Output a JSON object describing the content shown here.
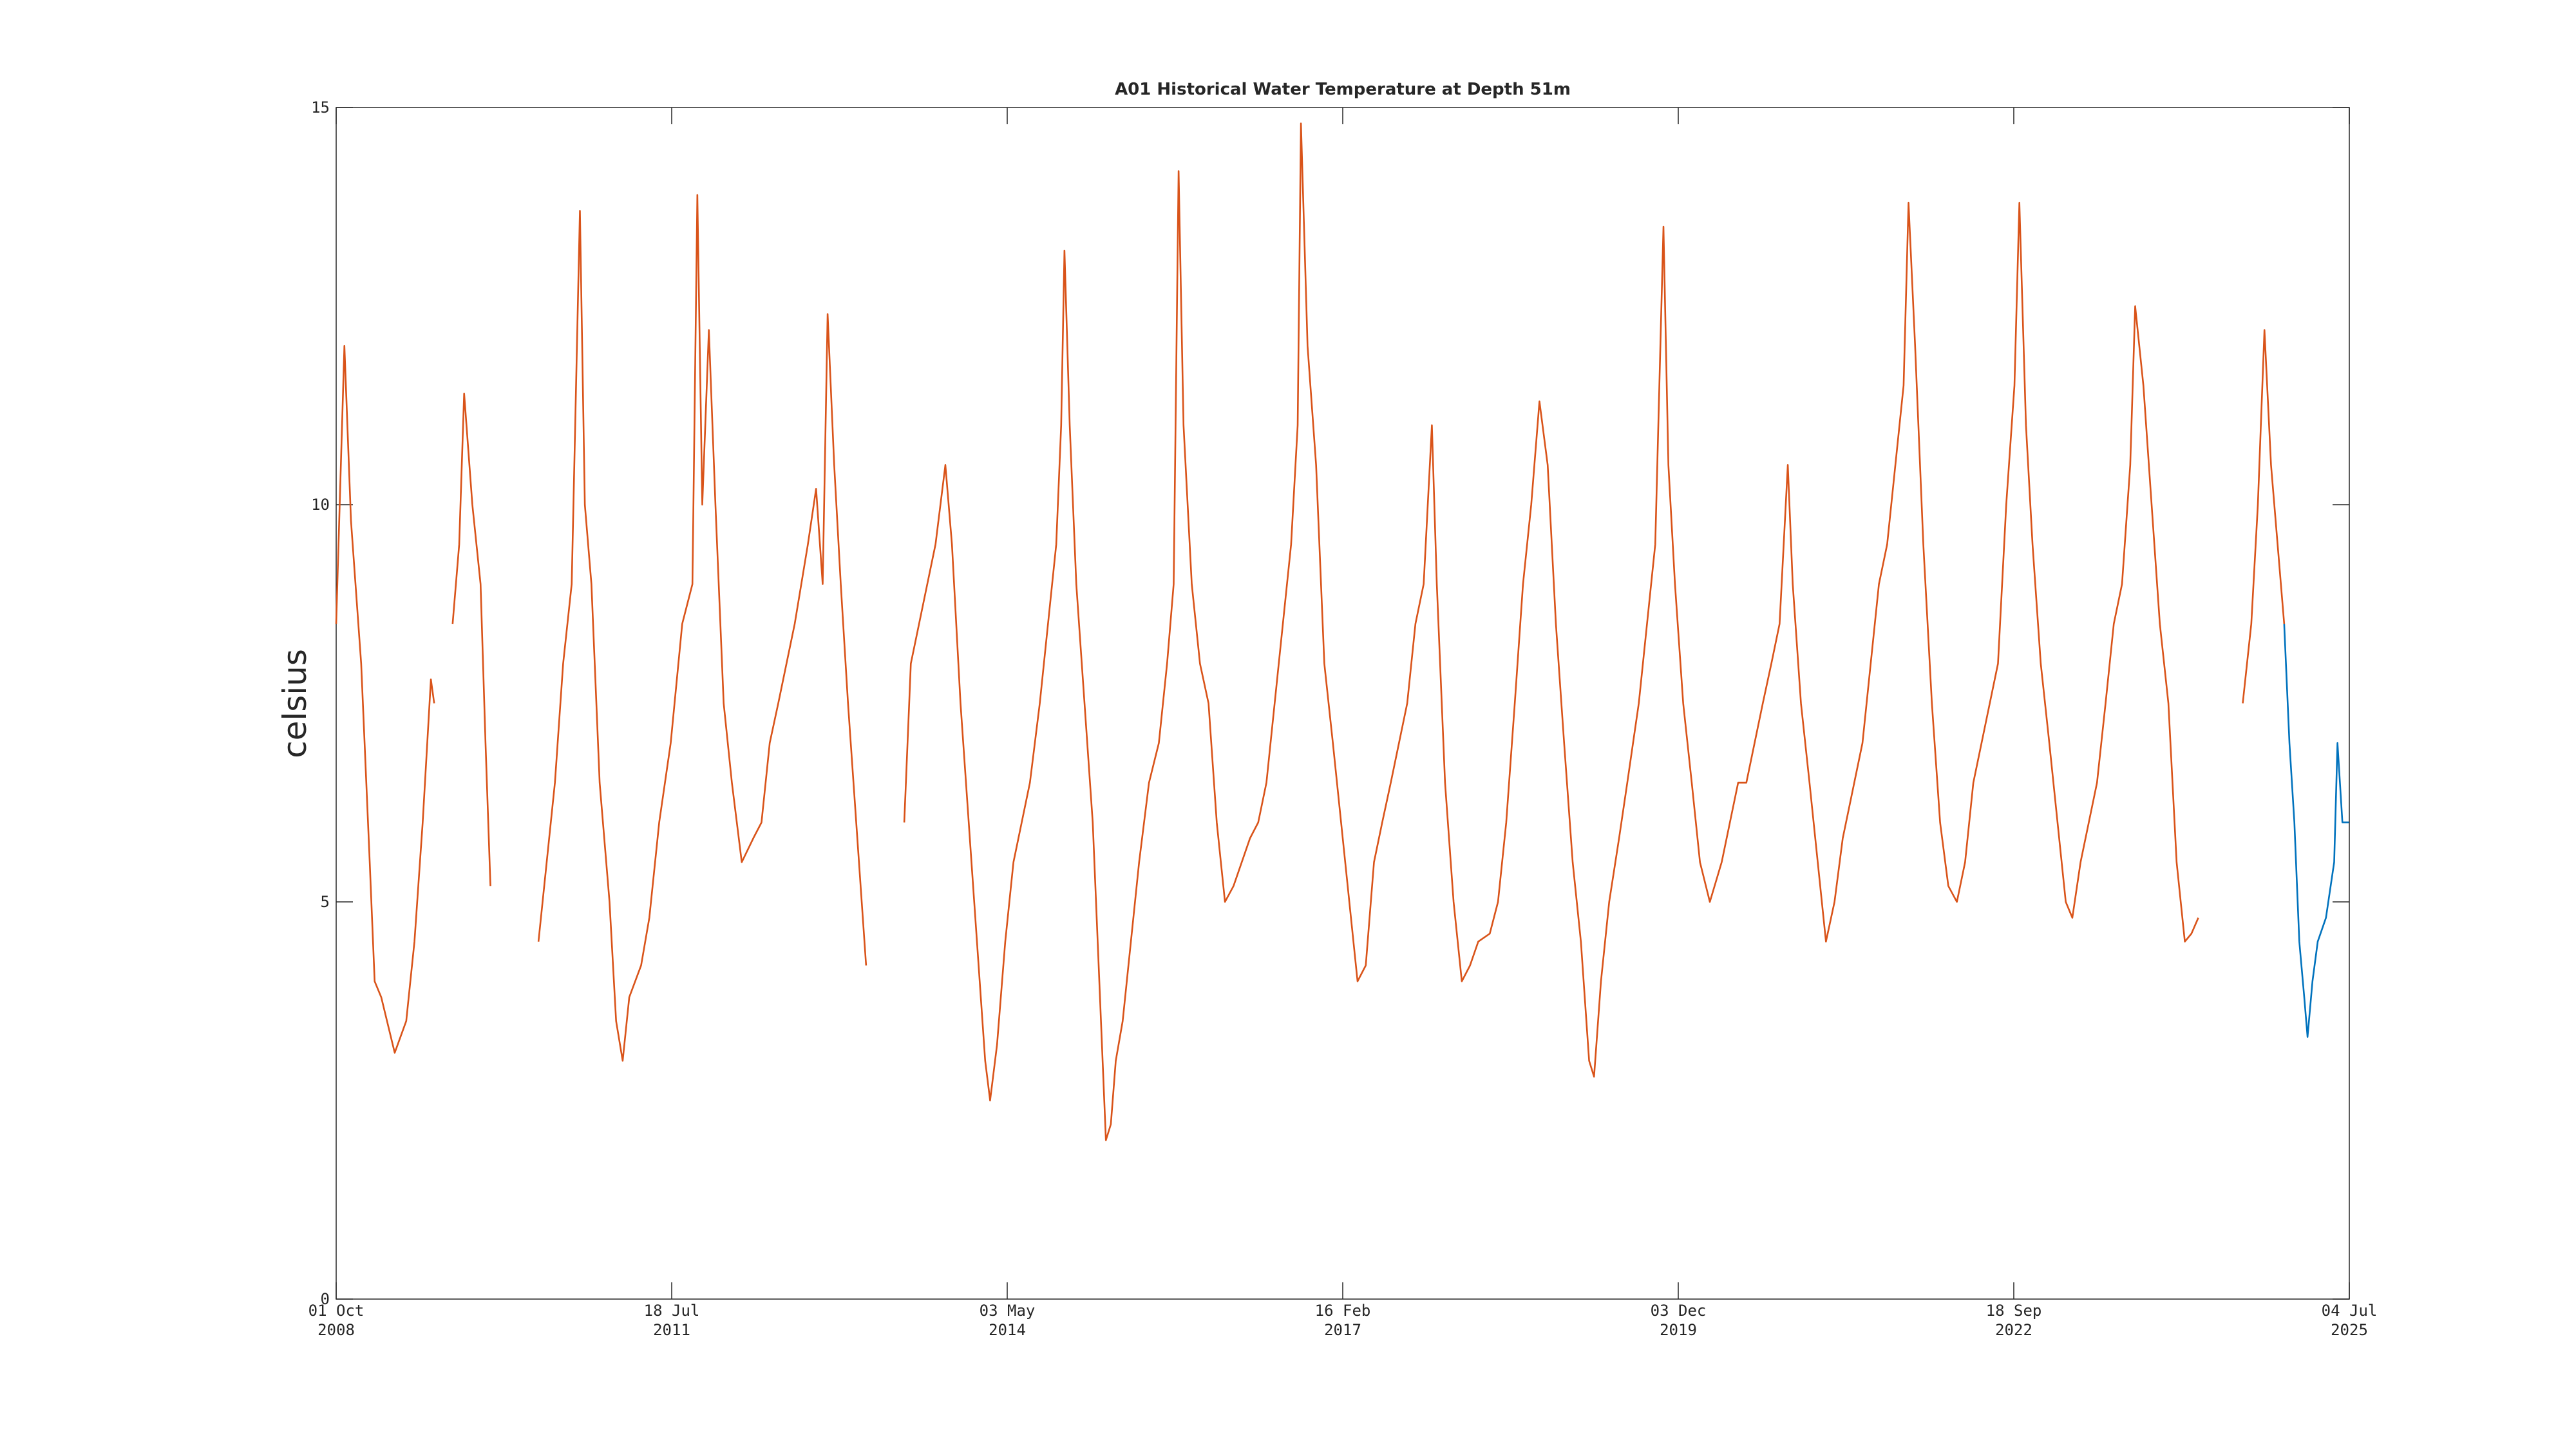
{
  "chart_data": {
    "type": "line",
    "title": "A01 Historical Water Temperature at Depth 51m",
    "y_label": "celsius",
    "xlim": [
      "2008-10-01",
      "2025-07-04"
    ],
    "xticks": [
      {
        "value": "2008-10-01",
        "label": "01 Oct\n2008"
      },
      {
        "value": "2011-07-18",
        "label": "18 Jul\n2011"
      },
      {
        "value": "2014-05-03",
        "label": "03 May\n2014"
      },
      {
        "value": "2017-02-16",
        "label": "16 Feb\n2017"
      },
      {
        "value": "2019-12-03",
        "label": "03 Dec\n2019"
      },
      {
        "value": "2022-09-18",
        "label": "18 Sep\n2022"
      },
      {
        "value": "2025-07-04",
        "label": "04 Jul\n2025"
      }
    ],
    "ylim": [
      0,
      15
    ],
    "yticks": [
      0,
      5,
      10,
      15
    ],
    "grid": false,
    "series": [
      {
        "color": "#d95319",
        "x": [
          "2008-10-01",
          "2008-10-26",
          "2008-11-15",
          "2008-12-16",
          "2009-01-11",
          "2009-01-26",
          "2009-02-15",
          "2009-03-28",
          "2009-05-02",
          "2009-05-27",
          "2009-06-21",
          "2009-07-16",
          "2009-07-26",
          null,
          "2009-09-20",
          "2009-10-10",
          "2009-10-25",
          "2009-11-19",
          "2009-12-14",
          "2009-12-29",
          "2010-01-13",
          null,
          "2010-06-08",
          "2010-07-03",
          "2010-07-28",
          "2010-08-22",
          "2010-09-17",
          "2010-10-12",
          "2010-10-27",
          "2010-11-16",
          "2010-12-11",
          "2011-01-10",
          "2011-01-30",
          "2011-02-19",
          "2011-03-11",
          "2011-04-16",
          "2011-05-11",
          "2011-06-10",
          "2011-07-15",
          "2011-08-19",
          "2011-09-19",
          "2011-10-04",
          "2011-10-19",
          "2011-11-08",
          "2011-11-28",
          "2011-12-23",
          "2012-01-17",
          "2012-02-16",
          "2012-03-22",
          "2012-04-16",
          "2012-05-11",
          "2012-06-06",
          "2012-07-01",
          "2012-07-26",
          "2012-09-04",
          "2012-09-29",
          "2012-10-19",
          "2012-11-03",
          "2012-11-23",
          "2012-12-13",
          "2013-01-04",
          "2013-01-29",
          "2013-02-18",
          "2013-02-28",
          null,
          "2013-06-24",
          "2013-07-14",
          "2013-08-08",
          "2013-09-02",
          "2013-09-27",
          "2013-10-27",
          "2013-11-16",
          "2013-12-12",
          "2014-01-06",
          "2014-01-31",
          "2014-02-25",
          "2014-03-12",
          "2014-04-02",
          "2014-04-27",
          "2014-05-22",
          "2014-06-16",
          "2014-07-11",
          "2014-08-10",
          "2014-09-04",
          "2014-09-29",
          "2014-10-14",
          "2014-10-24",
          "2014-11-09",
          "2014-11-29",
          "2014-12-24",
          "2015-01-18",
          "2015-02-07",
          "2015-02-27",
          "2015-03-14",
          "2015-03-29",
          "2015-04-19",
          "2015-05-14",
          "2015-06-08",
          "2015-07-08",
          "2015-08-07",
          "2015-09-01",
          "2015-09-21",
          "2015-10-06",
          "2015-10-21",
          "2015-11-15",
          "2015-12-10",
          "2016-01-05",
          "2016-01-30",
          "2016-02-24",
          "2016-03-21",
          "2016-04-15",
          "2016-05-10",
          "2016-06-04",
          "2016-06-29",
          "2016-07-24",
          "2016-08-18",
          "2016-09-12",
          "2016-10-02",
          "2016-10-12",
          "2016-11-01",
          "2016-11-27",
          "2016-12-22",
          "2017-01-17",
          "2017-02-11",
          "2017-03-08",
          "2017-04-02",
          "2017-04-27",
          "2017-05-22",
          "2017-06-16",
          "2017-07-12",
          "2017-08-06",
          "2017-08-31",
          "2017-09-25",
          "2017-10-20",
          "2017-11-14",
          "2017-11-29",
          "2017-12-24",
          "2018-01-19",
          "2018-02-13",
          "2018-03-10",
          "2018-04-04",
          "2018-05-09",
          "2018-06-03",
          "2018-06-28",
          "2018-07-24",
          "2018-08-18",
          "2018-09-12",
          "2018-10-07",
          "2018-11-01",
          "2018-11-26",
          "2018-12-21",
          "2019-01-16",
          "2019-02-10",
          "2019-03-07",
          "2019-03-22",
          "2019-04-12",
          "2019-05-07",
          "2019-06-06",
          "2019-07-01",
          "2019-08-05",
          "2019-08-30",
          "2019-09-24",
          "2019-10-19",
          "2019-11-03",
          "2019-11-23",
          "2019-12-18",
          "2020-01-13",
          "2020-02-07",
          "2020-03-08",
          "2020-04-13",
          "2020-05-08",
          "2020-06-02",
          "2020-06-27",
          "2020-07-22",
          "2020-08-16",
          "2020-09-11",
          "2020-10-06",
          "2020-10-31",
          "2020-11-15",
          "2020-12-10",
          "2021-01-05",
          "2021-01-30",
          "2021-02-24",
          "2021-03-22",
          "2021-04-16",
          "2021-05-11",
          "2021-06-15",
          "2021-07-10",
          "2021-08-04",
          "2021-08-29",
          "2021-09-23",
          "2021-10-18",
          "2021-11-02",
          "2021-11-22",
          "2021-12-17",
          "2022-01-12",
          "2022-02-06",
          "2022-03-03",
          "2022-03-29",
          "2022-04-23",
          "2022-05-18",
          "2022-06-12",
          "2022-07-07",
          "2022-08-01",
          "2022-08-26",
          "2022-09-20",
          "2022-10-05",
          "2022-10-25",
          "2022-11-14",
          "2022-12-09",
          "2023-01-04",
          "2023-01-29",
          "2023-02-23",
          "2023-03-15",
          "2023-04-09",
          "2023-05-04",
          "2023-05-29",
          "2023-06-24",
          "2023-07-19",
          "2023-08-13",
          "2023-09-07",
          "2023-09-22",
          "2023-10-17",
          "2023-11-11",
          "2023-12-06",
          "2024-01-01",
          "2024-01-26",
          "2024-02-20",
          "2024-03-11",
          "2024-04-01",
          null,
          "2024-08-14",
          "2024-09-09",
          "2024-09-29",
          "2024-10-19",
          "2024-11-08",
          "2024-11-28",
          "2024-12-18"
        ],
        "values": [
          8.5,
          12.0,
          9.8,
          8.0,
          5.5,
          4.0,
          3.8,
          3.1,
          3.5,
          4.5,
          6.0,
          7.8,
          7.5,
          null,
          8.5,
          9.5,
          11.4,
          10.0,
          9.0,
          7.0,
          5.2,
          null,
          4.5,
          5.5,
          6.5,
          8.0,
          9.0,
          13.7,
          10.0,
          9.0,
          6.5,
          5.0,
          3.5,
          3.0,
          3.8,
          4.2,
          4.8,
          6.0,
          7.0,
          8.5,
          9.0,
          13.9,
          10.0,
          12.2,
          10.0,
          7.5,
          6.5,
          5.5,
          5.8,
          6.0,
          7.0,
          7.5,
          8.0,
          8.5,
          9.5,
          10.2,
          9.0,
          12.4,
          10.5,
          9.0,
          7.5,
          6.0,
          4.8,
          4.2,
          null,
          6.0,
          8.0,
          8.5,
          9.0,
          9.5,
          10.5,
          9.5,
          7.5,
          6.0,
          4.5,
          3.0,
          2.5,
          3.2,
          4.5,
          5.5,
          6.0,
          6.5,
          7.5,
          8.5,
          9.5,
          11.0,
          13.2,
          11.0,
          9.0,
          7.5,
          6.0,
          4.0,
          2.0,
          2.2,
          3.0,
          3.5,
          4.5,
          5.5,
          6.5,
          7.0,
          8.0,
          9.0,
          14.2,
          11.0,
          9.0,
          8.0,
          7.5,
          6.0,
          5.0,
          5.2,
          5.5,
          5.8,
          6.0,
          6.5,
          7.5,
          8.5,
          9.5,
          11.0,
          14.8,
          12.0,
          10.5,
          8.0,
          7.0,
          6.0,
          5.0,
          4.0,
          4.2,
          5.5,
          6.0,
          6.5,
          7.0,
          7.5,
          8.5,
          9.0,
          11.0,
          9.0,
          6.5,
          5.0,
          4.0,
          4.2,
          4.5,
          4.6,
          5.0,
          6.0,
          7.5,
          9.0,
          10.0,
          11.3,
          10.5,
          8.5,
          7.0,
          5.5,
          4.5,
          3.0,
          2.8,
          4.0,
          5.0,
          5.8,
          6.5,
          7.5,
          8.5,
          9.5,
          13.5,
          10.5,
          9.0,
          7.5,
          6.5,
          5.5,
          5.0,
          5.5,
          6.0,
          6.5,
          6.5,
          7.0,
          7.5,
          8.0,
          8.5,
          10.5,
          9.0,
          7.5,
          6.5,
          5.5,
          4.5,
          5.0,
          5.8,
          6.3,
          7.0,
          8.0,
          9.0,
          9.5,
          10.5,
          11.5,
          13.8,
          12.0,
          9.5,
          7.5,
          6.0,
          5.2,
          5.0,
          5.5,
          6.5,
          7.0,
          7.5,
          8.0,
          10.0,
          11.5,
          13.8,
          11.0,
          9.5,
          8.0,
          7.0,
          6.0,
          5.0,
          4.8,
          5.5,
          6.0,
          6.5,
          7.5,
          8.5,
          9.0,
          10.5,
          12.5,
          11.5,
          10.0,
          8.5,
          7.5,
          5.5,
          4.5,
          4.6,
          4.8,
          null,
          7.5,
          8.5,
          10.0,
          12.2,
          10.5,
          9.5,
          8.5
        ]
      },
      {
        "color": "#0072bd",
        "x": [
          "2024-12-18",
          "2025-01-03",
          "2025-01-18",
          "2025-02-02",
          "2025-02-17",
          "2025-02-27",
          "2025-03-14",
          "2025-03-30",
          "2025-04-24",
          "2025-05-19",
          "2025-05-29",
          "2025-06-13",
          "2025-07-03"
        ],
        "values": [
          8.5,
          7.0,
          6.0,
          4.5,
          3.8,
          3.3,
          4.0,
          4.5,
          4.8,
          5.5,
          7.0,
          6.0,
          6.0
        ]
      }
    ]
  }
}
